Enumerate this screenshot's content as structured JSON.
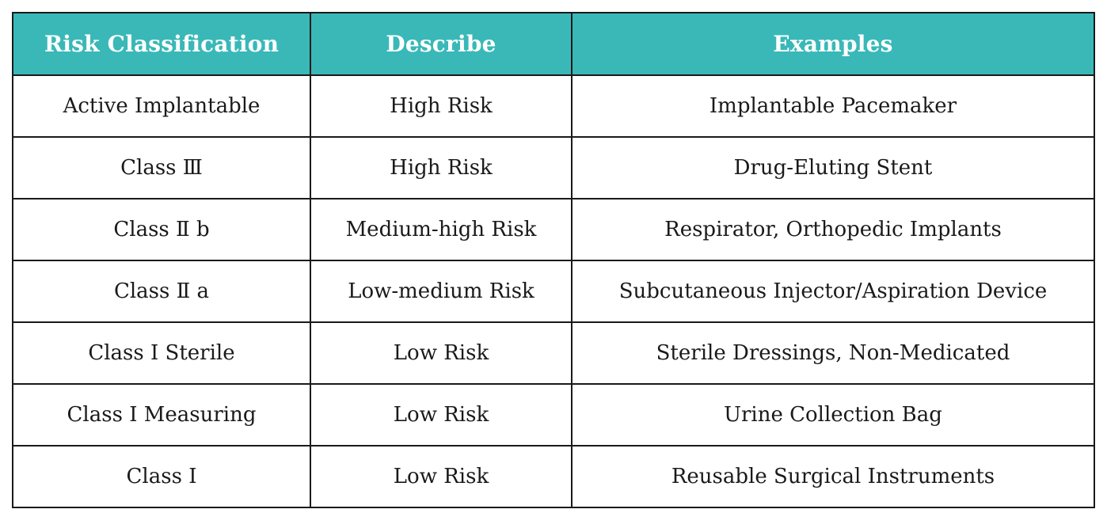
{
  "table": {
    "header_color": "#3ab8b8",
    "headers": [
      "Risk Classification",
      "Describe",
      "Examples"
    ],
    "rows": [
      [
        "Active Implantable",
        "High Risk",
        "Implantable Pacemaker"
      ],
      [
        "Class Ⅲ",
        "High Risk",
        "Drug-Eluting Stent"
      ],
      [
        "Class Ⅱ b",
        "Medium-high Risk",
        "Respirator, Orthopedic Implants"
      ],
      [
        "Class Ⅱ a",
        "Low-medium Risk",
        "Subcutaneous Injector/Aspiration Device"
      ],
      [
        "Class I Sterile",
        "Low Risk",
        "Sterile Dressings, Non-Medicated"
      ],
      [
        "Class I Measuring",
        "Low Risk",
        "Urine Collection Bag"
      ],
      [
        "Class I",
        "Low Risk",
        "Reusable Surgical Instruments"
      ]
    ]
  }
}
